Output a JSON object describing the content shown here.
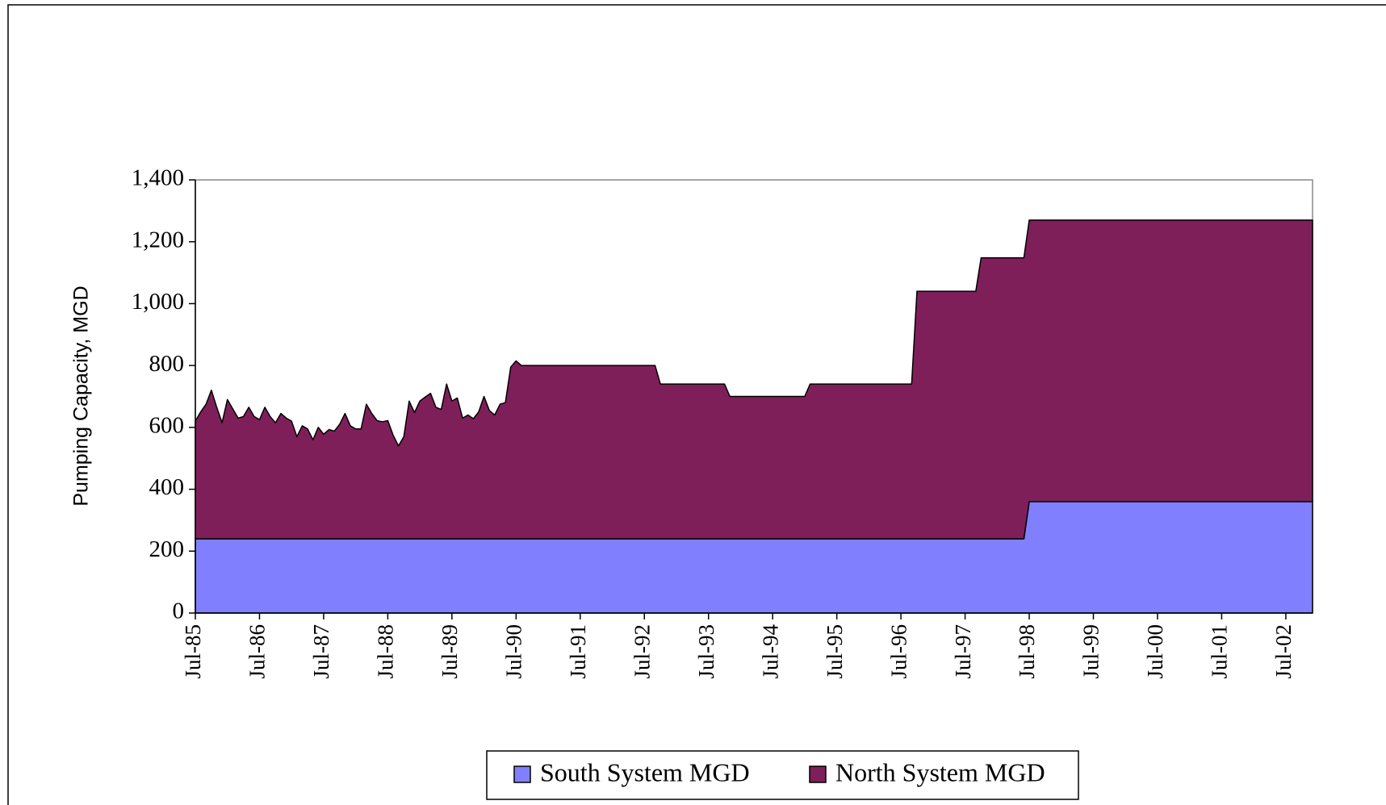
{
  "chart_data": {
    "type": "stacked_area",
    "y_axis_label": "Pumping Capacity, MGD",
    "categories": [
      "Jul-85",
      null,
      null,
      null,
      null,
      null,
      null,
      null,
      null,
      null,
      null,
      null,
      "Jul-86",
      null,
      null,
      null,
      null,
      null,
      null,
      null,
      null,
      null,
      null,
      null,
      "Jul-87",
      null,
      null,
      null,
      null,
      null,
      null,
      null,
      null,
      null,
      null,
      null,
      "Jul-88",
      null,
      null,
      null,
      null,
      null,
      null,
      null,
      null,
      null,
      null,
      null,
      "Jul-89",
      null,
      null,
      null,
      null,
      null,
      null,
      null,
      null,
      null,
      null,
      null,
      "Jul-90",
      null,
      null,
      null,
      null,
      null,
      null,
      null,
      null,
      null,
      null,
      null,
      "Jul-91",
      null,
      null,
      null,
      null,
      null,
      null,
      null,
      null,
      null,
      null,
      null,
      "Jul-92",
      null,
      null,
      null,
      null,
      null,
      null,
      null,
      null,
      null,
      null,
      null,
      "Jul-93",
      null,
      null,
      null,
      null,
      null,
      null,
      null,
      null,
      null,
      null,
      null,
      "Jul-94",
      null,
      null,
      null,
      null,
      null,
      null,
      null,
      null,
      null,
      null,
      null,
      "Jul-95",
      null,
      null,
      null,
      null,
      null,
      null,
      null,
      null,
      null,
      null,
      null,
      "Jul-96",
      null,
      null,
      null,
      null,
      null,
      null,
      null,
      null,
      null,
      null,
      null,
      "Jul-97",
      null,
      null,
      null,
      null,
      null,
      null,
      null,
      null,
      null,
      null,
      null,
      "Jul-98",
      null,
      null,
      null,
      null,
      null,
      null,
      null,
      null,
      null,
      null,
      null,
      "Jul-99",
      null,
      null,
      null,
      null,
      null,
      null,
      null,
      null,
      null,
      null,
      null,
      "Jul-00",
      null,
      null,
      null,
      null,
      null,
      null,
      null,
      null,
      null,
      null,
      null,
      "Jul-01",
      null,
      null,
      null,
      null,
      null,
      null,
      null,
      null,
      null,
      null,
      null,
      "Jul-02",
      null,
      null,
      null,
      null,
      null
    ],
    "series": [
      {
        "name": "South System MGD",
        "color": "#8080ff",
        "values": [
          240,
          240,
          240,
          240,
          240,
          240,
          240,
          240,
          240,
          240,
          240,
          240,
          240,
          240,
          240,
          240,
          240,
          240,
          240,
          240,
          240,
          240,
          240,
          240,
          240,
          240,
          240,
          240,
          240,
          240,
          240,
          240,
          240,
          240,
          240,
          240,
          240,
          240,
          240,
          240,
          240,
          240,
          240,
          240,
          240,
          240,
          240,
          240,
          240,
          240,
          240,
          240,
          240,
          240,
          240,
          240,
          240,
          240,
          240,
          240,
          240,
          240,
          240,
          240,
          240,
          240,
          240,
          240,
          240,
          240,
          240,
          240,
          240,
          240,
          240,
          240,
          240,
          240,
          240,
          240,
          240,
          240,
          240,
          240,
          240,
          240,
          240,
          240,
          240,
          240,
          240,
          240,
          240,
          240,
          240,
          240,
          240,
          240,
          240,
          240,
          240,
          240,
          240,
          240,
          240,
          240,
          240,
          240,
          240,
          240,
          240,
          240,
          240,
          240,
          240,
          240,
          240,
          240,
          240,
          240,
          240,
          240,
          240,
          240,
          240,
          240,
          240,
          240,
          240,
          240,
          240,
          240,
          240,
          240,
          240,
          240,
          240,
          240,
          240,
          240,
          240,
          240,
          240,
          240,
          240,
          240,
          240,
          240,
          240,
          240,
          240,
          240,
          240,
          240,
          240,
          240,
          360,
          360,
          360,
          360,
          360,
          360,
          360,
          360,
          360,
          360,
          360,
          360,
          360,
          360,
          360,
          360,
          360,
          360,
          360,
          360,
          360,
          360,
          360,
          360,
          360,
          360,
          360,
          360,
          360,
          360,
          360,
          360,
          360,
          360,
          360,
          360,
          360,
          360,
          360,
          360,
          360,
          360,
          360,
          360,
          360,
          360,
          360,
          360,
          360,
          360,
          360,
          360,
          360,
          360
        ]
      },
      {
        "name": "North System MGD",
        "color": "#7f1f5a",
        "values": [
          380,
          410,
          435,
          480,
          425,
          375,
          450,
          420,
          390,
          395,
          425,
          395,
          385,
          425,
          395,
          375,
          405,
          390,
          380,
          330,
          365,
          355,
          320,
          360,
          338,
          353,
          348,
          370,
          405,
          365,
          355,
          355,
          435,
          405,
          382,
          378,
          382,
          335,
          300,
          330,
          445,
          408,
          445,
          458,
          470,
          425,
          418,
          500,
          445,
          455,
          390,
          400,
          388,
          410,
          460,
          415,
          400,
          435,
          440,
          555,
          575,
          560,
          560,
          560,
          560,
          560,
          560,
          560,
          560,
          560,
          560,
          560,
          560,
          560,
          560,
          560,
          560,
          560,
          560,
          560,
          560,
          560,
          560,
          560,
          560,
          560,
          560,
          500,
          500,
          500,
          500,
          500,
          500,
          500,
          500,
          500,
          500,
          500,
          500,
          500,
          460,
          460,
          460,
          460,
          460,
          460,
          460,
          460,
          460,
          460,
          460,
          460,
          460,
          460,
          460,
          500,
          500,
          500,
          500,
          500,
          500,
          500,
          500,
          500,
          500,
          500,
          500,
          500,
          500,
          500,
          500,
          500,
          500,
          500,
          500,
          800,
          800,
          800,
          800,
          800,
          800,
          800,
          800,
          800,
          800,
          800,
          800,
          908,
          908,
          908,
          908,
          908,
          908,
          908,
          908,
          908,
          910,
          910,
          910,
          910,
          910,
          910,
          910,
          910,
          910,
          910,
          910,
          910,
          910,
          910,
          910,
          910,
          910,
          910,
          910,
          910,
          910,
          910,
          910,
          910,
          910,
          910,
          910,
          910,
          910,
          910,
          910,
          910,
          910,
          910,
          910,
          910,
          910,
          910,
          910,
          910,
          910,
          910,
          910,
          910,
          910,
          910,
          910,
          910,
          910,
          910,
          910,
          910,
          910,
          910
        ]
      }
    ],
    "ylim": [
      0,
      1400
    ],
    "yticks": [
      0,
      200,
      400,
      600,
      800,
      {
        "value": 1000,
        "label": "1,000"
      },
      {
        "value": 1200,
        "label": "1,200"
      },
      {
        "value": 1400,
        "label": "1,400"
      }
    ],
    "legend": "bottom"
  }
}
